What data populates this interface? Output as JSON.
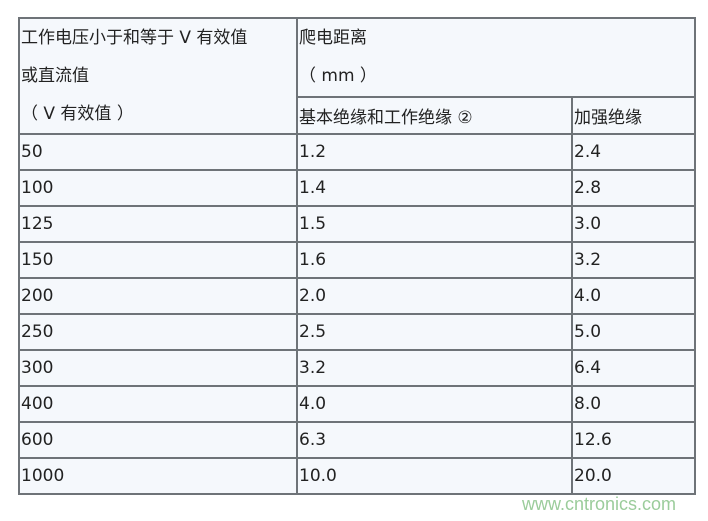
{
  "header": {
    "voltage_line1": "工作电压小于和等于 V 有效值",
    "voltage_line2": "或直流值",
    "voltage_line3": "（ V 有效值 ）",
    "creepage_line1": "爬电距离",
    "creepage_line2": "（ mm ）",
    "basic_insulation": "基本绝缘和工作绝缘 ②",
    "reinforced_insulation": "加强绝缘"
  },
  "rows": [
    {
      "voltage": "50",
      "basic": "1.2",
      "reinforced": "2.4"
    },
    {
      "voltage": "100",
      "basic": "1.4",
      "reinforced": "2.8"
    },
    {
      "voltage": "125",
      "basic": "1.5",
      "reinforced": "3.0"
    },
    {
      "voltage": "150",
      "basic": "1.6",
      "reinforced": "3.2"
    },
    {
      "voltage": "200",
      "basic": "2.0",
      "reinforced": "4.0"
    },
    {
      "voltage": "250",
      "basic": "2.5",
      "reinforced": "5.0"
    },
    {
      "voltage": "300",
      "basic": "3.2",
      "reinforced": "6.4"
    },
    {
      "voltage": "400",
      "basic": "4.0",
      "reinforced": "8.0"
    },
    {
      "voltage": "600",
      "basic": "6.3",
      "reinforced": "12.6"
    },
    {
      "voltage": "1000",
      "basic": "10.0",
      "reinforced": "20.0"
    }
  ],
  "watermark": "www.cntronics.com"
}
